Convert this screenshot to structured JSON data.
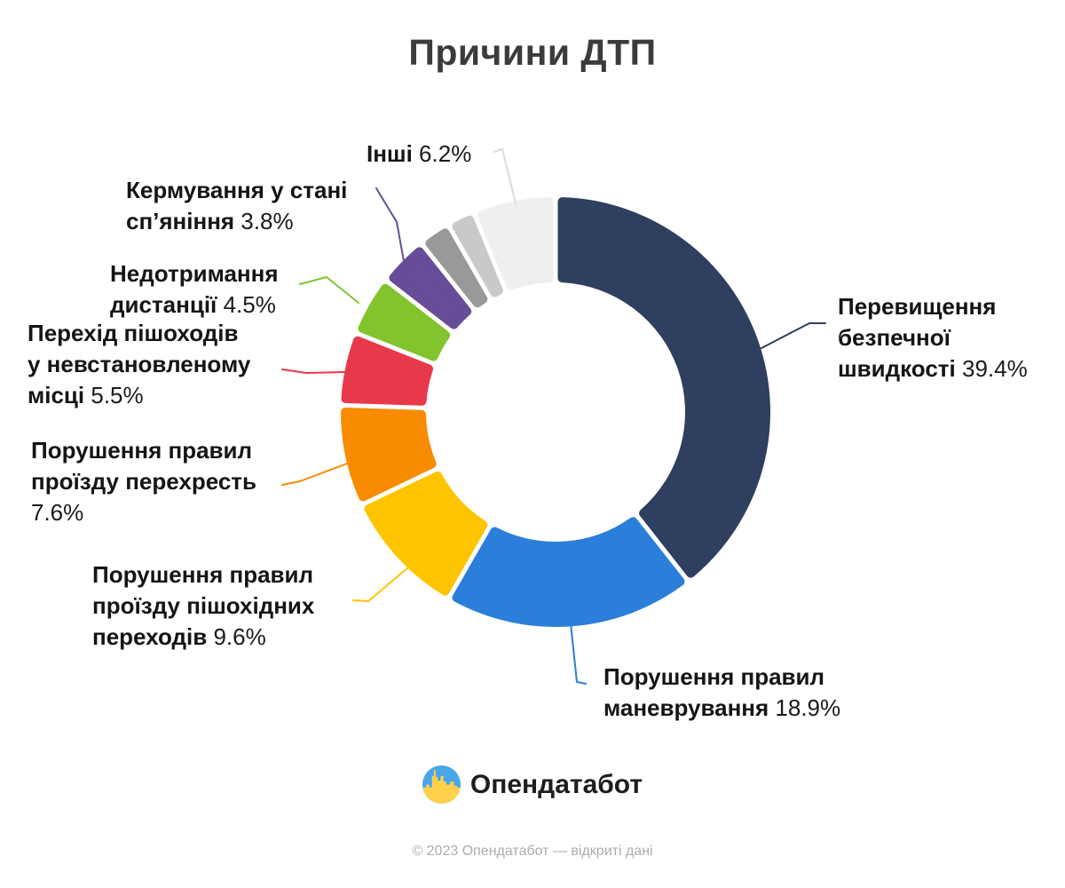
{
  "chart_data": {
    "type": "pie",
    "variant": "donut",
    "title": "Причини ДТП",
    "unit": "%",
    "legend_position": "outside-callouts",
    "slices": [
      {
        "id": "speeding",
        "label": "Перевищення безпечної швидкості",
        "value": 39.4,
        "color": "#2E3F5F",
        "label_lines": [
          "Перевищення",
          "безпечної",
          "швидкості 39.4%"
        ]
      },
      {
        "id": "maneuvering",
        "label": "Порушення правил маневрування",
        "value": 18.9,
        "color": "#2B7ED9",
        "label_lines": [
          "Порушення правил",
          "маневрування 18.9%"
        ]
      },
      {
        "id": "pedestrian-crossings",
        "label": "Порушення правил проїзду пішохідних переходів",
        "value": 9.6,
        "color": "#FFC400",
        "label_lines": [
          "Порушення правил",
          "проїзду пішохідних",
          "переходів 9.6%"
        ]
      },
      {
        "id": "intersections",
        "label": "Порушення правил проїзду перехресть",
        "value": 7.6,
        "color": "#F98B00",
        "label_lines": [
          "Порушення правил",
          "проїзду перехресть",
          "7.6%"
        ]
      },
      {
        "id": "jaywalking",
        "label": "Перехід пішоходів у невстановленому місці",
        "value": 5.5,
        "color": "#E8394A",
        "label_lines": [
          "Перехід пішоходів",
          "у невстановленому",
          "місці 5.5%"
        ]
      },
      {
        "id": "following-distance",
        "label": "Недотримання дистанції",
        "value": 4.5,
        "color": "#83C32D",
        "label_lines": [
          "Недотримання",
          "дистанції 4.5%"
        ]
      },
      {
        "id": "drunk-driving",
        "label": "Кермування у стані сп’яніння",
        "value": 3.8,
        "color": "#674C98",
        "label_lines": [
          "Кермування у стані",
          "сп’яніння 3.8%"
        ]
      },
      {
        "id": "minor-unlabeled-1",
        "label": null,
        "value": 2.4,
        "color": "#999999",
        "label_lines": []
      },
      {
        "id": "minor-unlabeled-2",
        "label": null,
        "value": 2.1,
        "color": "#C9C9C9",
        "label_lines": []
      },
      {
        "id": "others",
        "label": "Інші",
        "value": 6.2,
        "color": "#EFEFEF",
        "label_lines": [
          "Інші 6.2%"
        ],
        "leader_color": "#D9D9D9"
      }
    ]
  },
  "logo": {
    "text": "Опендатабот",
    "icon": "opendatabot-circle-skyline",
    "icon_colors": {
      "sky": "#4AA6EB",
      "skyline": "#FFD04A"
    }
  },
  "footer": {
    "copyright": "© 2023 Опендатабот — відкриті дані"
  }
}
